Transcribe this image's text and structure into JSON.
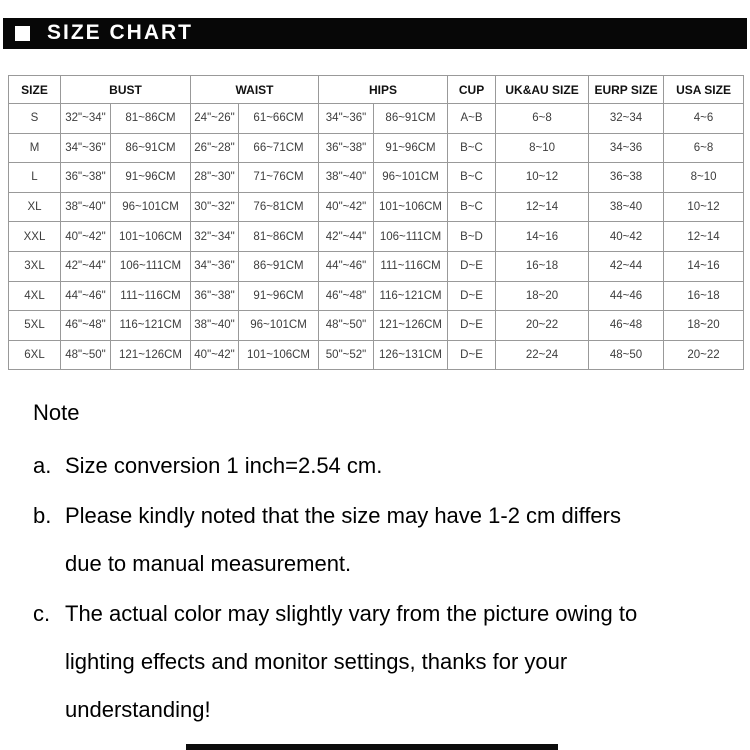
{
  "header": {
    "title": "SIZE CHART"
  },
  "table": {
    "column_groups": [
      {
        "label": "SIZE",
        "span": 1
      },
      {
        "label": "BUST",
        "span": 2
      },
      {
        "label": "WAIST",
        "span": 2
      },
      {
        "label": "HIPS",
        "span": 2
      },
      {
        "label": "CUP",
        "span": 1
      },
      {
        "label": "UK&AU SIZE",
        "span": 1
      },
      {
        "label": "EURP SIZE",
        "span": 1
      },
      {
        "label": "USA SIZE",
        "span": 1
      }
    ],
    "rows": [
      [
        "S",
        "32\"~34\"",
        "81~86CM",
        "24\"~26\"",
        "61~66CM",
        "34\"~36\"",
        "86~91CM",
        "A~B",
        "6~8",
        "32~34",
        "4~6"
      ],
      [
        "M",
        "34\"~36\"",
        "86~91CM",
        "26\"~28\"",
        "66~71CM",
        "36\"~38\"",
        "91~96CM",
        "B~C",
        "8~10",
        "34~36",
        "6~8"
      ],
      [
        "L",
        "36\"~38\"",
        "91~96CM",
        "28\"~30\"",
        "71~76CM",
        "38\"~40\"",
        "96~101CM",
        "B~C",
        "10~12",
        "36~38",
        "8~10"
      ],
      [
        "XL",
        "38\"~40\"",
        "96~101CM",
        "30\"~32\"",
        "76~81CM",
        "40\"~42\"",
        "101~106CM",
        "B~C",
        "12~14",
        "38~40",
        "10~12"
      ],
      [
        "XXL",
        "40\"~42\"",
        "101~106CM",
        "32\"~34\"",
        "81~86CM",
        "42\"~44\"",
        "106~111CM",
        "B~D",
        "14~16",
        "40~42",
        "12~14"
      ],
      [
        "3XL",
        "42\"~44\"",
        "106~111CM",
        "34\"~36\"",
        "86~91CM",
        "44\"~46\"",
        "111~116CM",
        "D~E",
        "16~18",
        "42~44",
        "14~16"
      ],
      [
        "4XL",
        "44\"~46\"",
        "111~116CM",
        "36\"~38\"",
        "91~96CM",
        "46\"~48\"",
        "116~121CM",
        "D~E",
        "18~20",
        "44~46",
        "16~18"
      ],
      [
        "5XL",
        "46\"~48\"",
        "116~121CM",
        "38\"~40\"",
        "96~101CM",
        "48\"~50\"",
        "121~126CM",
        "D~E",
        "20~22",
        "46~48",
        "18~20"
      ],
      [
        "6XL",
        "48\"~50\"",
        "121~126CM",
        "40\"~42\"",
        "101~106CM",
        "50\"~52\"",
        "126~131CM",
        "D~E",
        "22~24",
        "48~50",
        "20~22"
      ]
    ]
  },
  "notes": {
    "heading": "Note",
    "items": [
      {
        "label": "a.",
        "text": "Size conversion 1 inch=2.54 cm."
      },
      {
        "label": "b.",
        "text": "Please kindly noted that the size may have 1-2 cm differs\ndue to manual measurement."
      },
      {
        "label": "c.",
        "text": "The actual color may slightly vary from the picture owing to\nlighting effects and monitor settings, thanks for your\nunderstanding!"
      }
    ]
  },
  "colors": {
    "header_bg": "#070707",
    "table_border": "#999999",
    "body_text": "#000000",
    "cell_text": "#3d3d3d"
  }
}
